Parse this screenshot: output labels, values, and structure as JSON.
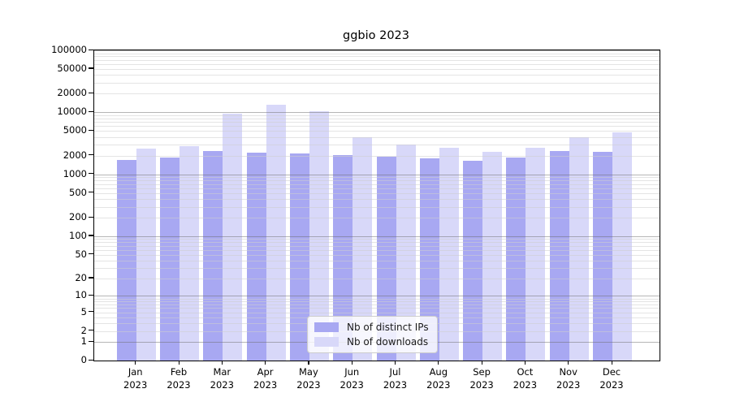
{
  "title": "ggbio 2023",
  "colors": {
    "ips_bar": "#a8a8f2",
    "downloads_bar": "#d8d8f9",
    "grid_major": "rgba(110,110,110,0.5)",
    "grid_minor": "rgba(205,205,205,0.55)",
    "axis": "#000000",
    "legend_border": "#cccccc"
  },
  "legend": {
    "ips_label": "Nb of distinct IPs",
    "downloads_label": "Nb of downloads"
  },
  "chart_data": {
    "type": "bar",
    "title": "ggbio 2023",
    "xlabel": "",
    "ylabel": "",
    "yscale": "log1p",
    "ylim": [
      0,
      100000
    ],
    "grid": "on",
    "legend_position": "bottom-center",
    "year": "2023",
    "categories": [
      "Jan",
      "Feb",
      "Mar",
      "Apr",
      "May",
      "Jun",
      "Jul",
      "Aug",
      "Sep",
      "Oct",
      "Nov",
      "Dec"
    ],
    "y_ticks": [
      100000,
      50000,
      20000,
      10000,
      5000,
      2000,
      1000,
      500,
      200,
      100,
      50,
      20,
      10,
      5,
      2,
      1,
      0
    ],
    "series": [
      {
        "name": "Nb of distinct IPs",
        "color": "#a8a8f2",
        "values": [
          1700,
          1870,
          2400,
          2240,
          2170,
          2050,
          1910,
          1800,
          1660,
          1850,
          2400,
          2330
        ]
      },
      {
        "name": "Nb of downloads",
        "color": "#d8d8f9",
        "values": [
          2600,
          2830,
          9400,
          13400,
          10400,
          3950,
          3000,
          2720,
          2310,
          2715,
          3950,
          4800
        ]
      }
    ]
  }
}
